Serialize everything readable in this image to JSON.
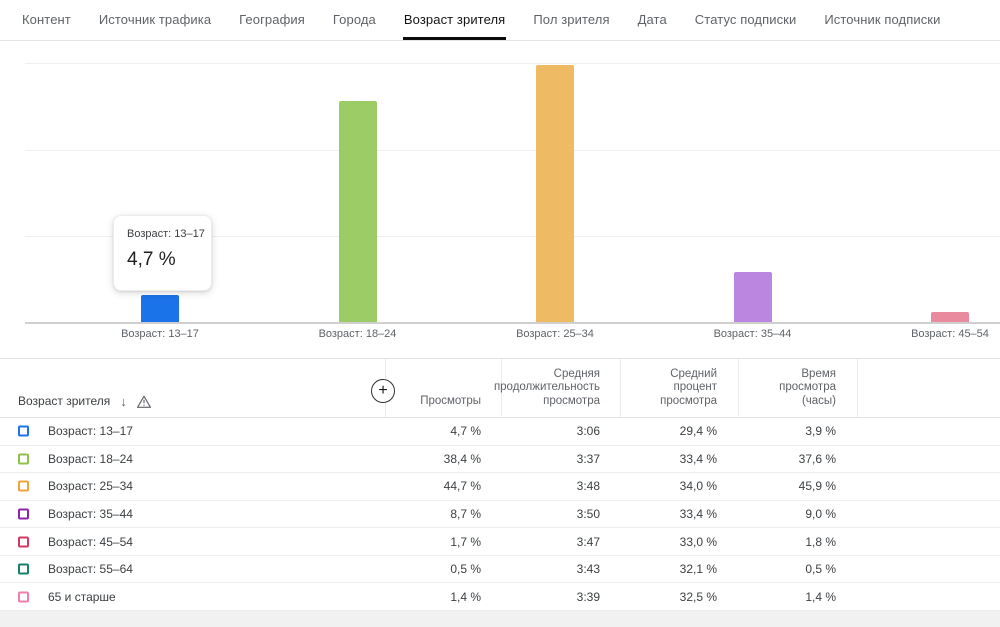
{
  "tabs": [
    {
      "label": "Контент",
      "active": false
    },
    {
      "label": "Источник трафика",
      "active": false
    },
    {
      "label": "География",
      "active": false
    },
    {
      "label": "Города",
      "active": false
    },
    {
      "label": "Возраст зрителя",
      "active": true
    },
    {
      "label": "Пол зрителя",
      "active": false
    },
    {
      "label": "Дата",
      "active": false
    },
    {
      "label": "Статус подписки",
      "active": false
    },
    {
      "label": "Источник подписки",
      "active": false
    }
  ],
  "tooltip": {
    "category": "Возраст: 13–17",
    "value": "4,7 %"
  },
  "chart_data": {
    "type": "bar",
    "title": "",
    "xlabel": "",
    "ylabel": "",
    "unit": "%",
    "categories": [
      "Возраст: 13–17",
      "Возраст: 18–24",
      "Возраст: 25–34",
      "Возраст: 35–44",
      "Возраст: 45–54"
    ],
    "values": [
      4.7,
      38.4,
      44.7,
      8.7,
      1.7
    ],
    "colors": [
      "#1a73e8",
      "#9ccc65",
      "#eeba64",
      "#bb86e0",
      "#ea8a9e"
    ],
    "ylim": [
      0,
      48
    ],
    "gridline_values": [
      15,
      30,
      45
    ],
    "grid": true,
    "legend_position": "none"
  },
  "icons": {
    "add_metric": "+",
    "sort_descending": "↓"
  },
  "table": {
    "first_column": {
      "label": "Возраст зрителя"
    },
    "columns": [
      "Просмотры",
      "Средняя\nпродолжительность\nпросмотра",
      "Средний\nпроцент\nпросмотра",
      "Время\nпросмотра\n(часы)"
    ],
    "rows": [
      {
        "color": "#1a73e8",
        "label": "Возраст: 13–17",
        "views": "4,7 %",
        "avg_view_duration": "3:06",
        "avg_percentage_viewed": "29,4 %",
        "watch_time_share": "3,9 %"
      },
      {
        "color": "#8fc04e",
        "label": "Возраст: 18–24",
        "views": "38,4 %",
        "avg_view_duration": "3:37",
        "avg_percentage_viewed": "33,4 %",
        "watch_time_share": "37,6 %"
      },
      {
        "color": "#f0a33c",
        "label": "Возраст: 25–34",
        "views": "44,7 %",
        "avg_view_duration": "3:48",
        "avg_percentage_viewed": "34,0 %",
        "watch_time_share": "45,9 %"
      },
      {
        "color": "#8e24aa",
        "label": "Возраст: 35–44",
        "views": "8,7 %",
        "avg_view_duration": "3:50",
        "avg_percentage_viewed": "33,4 %",
        "watch_time_share": "9,0 %"
      },
      {
        "color": "#d23a64",
        "label": "Возраст: 45–54",
        "views": "1,7 %",
        "avg_view_duration": "3:47",
        "avg_percentage_viewed": "33,0 %",
        "watch_time_share": "1,8 %"
      },
      {
        "color": "#17806b",
        "label": "Возраст: 55–64",
        "views": "0,5 %",
        "avg_view_duration": "3:43",
        "avg_percentage_viewed": "32,1 %",
        "watch_time_share": "0,5 %"
      },
      {
        "color": "#ee7fad",
        "label": "65 и старше",
        "views": "1,4 %",
        "avg_view_duration": "3:39",
        "avg_percentage_viewed": "32,5 %",
        "watch_time_share": "1,4 %"
      }
    ]
  }
}
